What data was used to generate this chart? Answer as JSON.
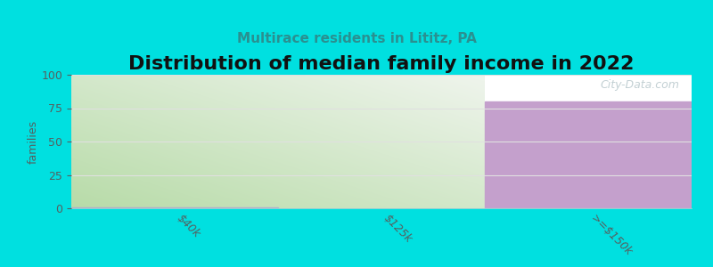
{
  "title": "Distribution of median family income in 2022",
  "subtitle": "Multirace residents in Lititz, PA",
  "categories": [
    "$40k",
    "$125k",
    ">=$150k"
  ],
  "values": [
    1,
    0,
    80
  ],
  "bar_colors_solid": [
    "#c8e6b8",
    "#c8e6b8",
    "#c4a0cc"
  ],
  "bar_green_light": "#e8f5e0",
  "bar_green_dark": "#b0d8a0",
  "bar_purple": "#c4a0cc",
  "small_bar_color": "#b0a8d0",
  "ylabel": "families",
  "ylim": [
    0,
    100
  ],
  "yticks": [
    0,
    25,
    50,
    75,
    100
  ],
  "background_color": "#00e0e0",
  "plot_bg_color": "#ffffff",
  "title_fontsize": 16,
  "subtitle_fontsize": 11,
  "subtitle_color": "#2a9090",
  "watermark": "City-Data.com",
  "watermark_color": "#b8c8cc",
  "tick_color": "#556060",
  "grid_color": "#e0e0e0"
}
